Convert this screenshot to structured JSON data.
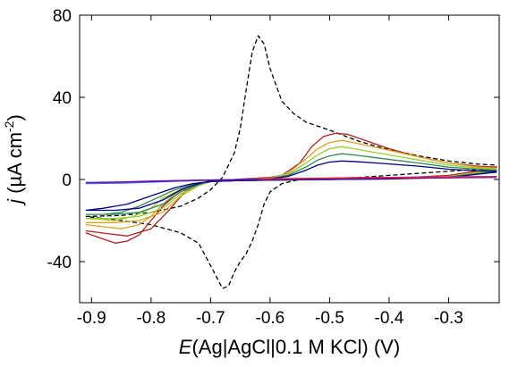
{
  "chart_data": {
    "type": "line",
    "title": "",
    "xlabel": {
      "italic": "E",
      "rest": "(Ag|AgCl|0.1 M KCl) (V)"
    },
    "ylabel": {
      "italic": "j",
      "rest": " (µA cm",
      "sup": "-2",
      "close": ")"
    },
    "xlim": [
      -0.92,
      -0.215
    ],
    "ylim": [
      -60,
      80
    ],
    "xticks": [
      -0.9,
      -0.8,
      -0.7,
      -0.6,
      -0.5,
      -0.4,
      -0.3
    ],
    "xtick_labels": [
      "-0.9",
      "-0.8",
      "-0.7",
      "-0.6",
      "-0.5",
      "-0.4",
      "-0.3"
    ],
    "yticks": [
      -40,
      0,
      40,
      80
    ],
    "ytick_labels": [
      "-40",
      "0",
      "40",
      "80"
    ],
    "grid": false,
    "legend": "none",
    "series": [
      {
        "color": "#000000",
        "dash": true,
        "x": [
          -0.91,
          -0.85,
          -0.8,
          -0.75,
          -0.72,
          -0.7,
          -0.68,
          -0.66,
          -0.65,
          -0.64,
          -0.63,
          -0.62,
          -0.61,
          -0.6,
          -0.58,
          -0.56,
          -0.54,
          -0.52,
          -0.5,
          -0.45,
          -0.4,
          -0.35,
          -0.3,
          -0.25,
          -0.22,
          -0.22,
          -0.25,
          -0.3,
          -0.35,
          -0.4,
          -0.45,
          -0.5,
          -0.55,
          -0.58,
          -0.6,
          -0.61,
          -0.62,
          -0.63,
          -0.64,
          -0.65,
          -0.66,
          -0.67,
          -0.68,
          -0.7,
          -0.72,
          -0.75,
          -0.8,
          -0.85,
          -0.88,
          -0.91
        ],
        "y": [
          -18,
          -17.5,
          -16,
          -13,
          -9,
          -5,
          1,
          13,
          25,
          44,
          62,
          70,
          66,
          54,
          38,
          32,
          28,
          26,
          24,
          18.5,
          14.5,
          11.5,
          9,
          7.5,
          7,
          6,
          5,
          4,
          3,
          2,
          1,
          0.5,
          0,
          -2,
          -6,
          -12,
          -22,
          -30,
          -36,
          -40,
          -45,
          -52,
          -53,
          -42,
          -31,
          -26,
          -22,
          -20,
          -19,
          -18
        ]
      },
      {
        "color": "#b22222",
        "x": [
          -0.91,
          -0.87,
          -0.84,
          -0.8,
          -0.77,
          -0.74,
          -0.7,
          -0.66,
          -0.63,
          -0.6,
          -0.58,
          -0.55,
          -0.53,
          -0.51,
          -0.49,
          -0.47,
          -0.45,
          -0.4,
          -0.35,
          -0.3,
          -0.25,
          -0.22,
          -0.22,
          -0.3,
          -0.4,
          -0.5,
          -0.6,
          -0.66,
          -0.7,
          -0.72,
          -0.74,
          -0.76,
          -0.78,
          -0.8,
          -0.82,
          -0.84,
          -0.86,
          -0.88,
          -0.9,
          -0.91
        ],
        "y": [
          -25,
          -26.5,
          -27.5,
          -24,
          -15,
          -5,
          -1,
          0,
          0.5,
          1,
          2,
          8,
          16,
          21,
          22.5,
          22,
          20,
          15,
          11,
          8,
          6.5,
          6,
          5.5,
          2,
          0.5,
          0,
          -0.3,
          -0.6,
          -1,
          -2,
          -4,
          -8,
          -13,
          -20,
          -27,
          -30,
          -31,
          -29,
          -27,
          -26
        ]
      },
      {
        "color": "#daa520",
        "x": [
          -0.91,
          -0.86,
          -0.82,
          -0.78,
          -0.75,
          -0.72,
          -0.7,
          -0.65,
          -0.6,
          -0.57,
          -0.54,
          -0.52,
          -0.5,
          -0.48,
          -0.46,
          -0.42,
          -0.35,
          -0.3,
          -0.25,
          -0.22,
          -0.22,
          -0.3,
          -0.4,
          -0.5,
          -0.6,
          -0.66,
          -0.7,
          -0.72,
          -0.74,
          -0.76,
          -0.78,
          -0.8,
          -0.82,
          -0.85,
          -0.88,
          -0.91
        ],
        "y": [
          -21,
          -21,
          -20,
          -16,
          -8,
          -3,
          -0.8,
          0,
          0.6,
          3,
          10,
          15,
          18,
          19,
          18,
          15.5,
          11,
          8,
          6,
          5.5,
          5,
          1.5,
          0.4,
          0,
          -0.3,
          -0.6,
          -1,
          -2,
          -4,
          -7,
          -12,
          -18,
          -22,
          -24,
          -23,
          -22
        ]
      },
      {
        "color": "#9acd32",
        "x": [
          -0.91,
          -0.86,
          -0.82,
          -0.78,
          -0.75,
          -0.72,
          -0.7,
          -0.65,
          -0.6,
          -0.57,
          -0.54,
          -0.52,
          -0.5,
          -0.48,
          -0.46,
          -0.42,
          -0.35,
          -0.3,
          -0.25,
          -0.22,
          -0.22,
          -0.3,
          -0.4,
          -0.5,
          -0.6,
          -0.66,
          -0.7,
          -0.72,
          -0.75,
          -0.78,
          -0.8,
          -0.83,
          -0.86,
          -0.88,
          -0.91
        ],
        "y": [
          -19,
          -19,
          -18,
          -14,
          -7,
          -3,
          -0.8,
          0,
          0.5,
          2.5,
          8,
          12,
          15,
          16,
          15,
          13,
          9.5,
          7,
          5.5,
          5,
          4.5,
          1.3,
          0.3,
          0,
          -0.3,
          -0.6,
          -1,
          -2,
          -5,
          -9,
          -14,
          -18,
          -20,
          -19.5,
          -19
        ]
      },
      {
        "color": "#2e8b57",
        "x": [
          -0.91,
          -0.86,
          -0.82,
          -0.78,
          -0.75,
          -0.72,
          -0.7,
          -0.65,
          -0.6,
          -0.57,
          -0.54,
          -0.52,
          -0.5,
          -0.48,
          -0.46,
          -0.42,
          -0.35,
          -0.3,
          -0.25,
          -0.22,
          -0.22,
          -0.3,
          -0.4,
          -0.5,
          -0.6,
          -0.66,
          -0.7,
          -0.73,
          -0.76,
          -0.79,
          -0.82,
          -0.85,
          -0.88,
          -0.91
        ],
        "y": [
          -17,
          -17,
          -16,
          -12,
          -6,
          -2.5,
          -0.7,
          0,
          0.4,
          2,
          6,
          9.5,
          11.5,
          12.5,
          12,
          10.5,
          8,
          6,
          5,
          4.5,
          4,
          1.2,
          0.3,
          0,
          -0.3,
          -0.6,
          -1,
          -2.5,
          -5,
          -9,
          -13,
          -16,
          -17,
          -17
        ]
      },
      {
        "color": "#000080",
        "x": [
          -0.91,
          -0.86,
          -0.82,
          -0.78,
          -0.75,
          -0.72,
          -0.7,
          -0.65,
          -0.6,
          -0.57,
          -0.54,
          -0.52,
          -0.5,
          -0.48,
          -0.46,
          -0.42,
          -0.35,
          -0.3,
          -0.25,
          -0.22,
          -0.22,
          -0.3,
          -0.4,
          -0.5,
          -0.6,
          -0.66,
          -0.7,
          -0.73,
          -0.76,
          -0.8,
          -0.84,
          -0.88,
          -0.91
        ],
        "y": [
          -15,
          -15,
          -14,
          -10,
          -5,
          -2,
          -0.6,
          0,
          0.3,
          1.5,
          4.5,
          7,
          8.5,
          9,
          8.8,
          8,
          6.5,
          5,
          4.2,
          4,
          3.5,
          1,
          0.2,
          0,
          -0.3,
          -0.6,
          -1,
          -2,
          -4,
          -8,
          -12,
          -14,
          -15
        ]
      },
      {
        "color": "#4169e1",
        "x": [
          -0.91,
          -0.85,
          -0.8,
          -0.75,
          -0.7,
          -0.65,
          -0.6,
          -0.5,
          -0.4,
          -0.3,
          -0.22,
          -0.22,
          -0.3,
          -0.4,
          -0.5,
          -0.6,
          -0.7,
          -0.75,
          -0.8,
          -0.85,
          -0.91
        ],
        "y": [
          -2,
          -1.5,
          -1,
          -0.6,
          -0.3,
          0,
          0.2,
          0.6,
          1,
          1.3,
          1.5,
          1.3,
          1,
          0.7,
          0.3,
          0,
          -0.4,
          -0.8,
          -1.3,
          -1.8,
          -2
        ]
      },
      {
        "color": "#6a0dad",
        "x": [
          -0.91,
          -0.85,
          -0.8,
          -0.75,
          -0.7,
          -0.65,
          -0.6,
          -0.5,
          -0.4,
          -0.3,
          -0.22,
          -0.22,
          -0.3,
          -0.4,
          -0.5,
          -0.6,
          -0.7,
          -0.75,
          -0.8,
          -0.85,
          -0.91
        ],
        "y": [
          -1.5,
          -1.2,
          -0.8,
          -0.5,
          -0.2,
          0,
          0.2,
          0.5,
          0.8,
          1,
          1.1,
          1,
          0.8,
          0.5,
          0.2,
          0,
          -0.3,
          -0.6,
          -1,
          -1.3,
          -1.5
        ]
      },
      {
        "color": "#e32636",
        "x": [
          -0.62,
          -0.55,
          -0.5,
          -0.45,
          -0.4,
          -0.35,
          -0.3,
          -0.25,
          -0.22
        ],
        "y": [
          0.3,
          0.5,
          0.7,
          0.9,
          1,
          1.1,
          1.2,
          1.3,
          1.3
        ]
      }
    ]
  }
}
